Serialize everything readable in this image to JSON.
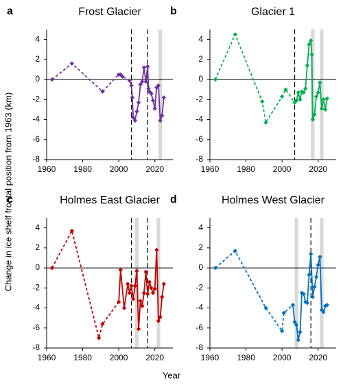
{
  "xlabel": "Year",
  "ylabel": "Change in ice shelf frontal position from 1963 (km)",
  "chart_data": [
    {
      "type": "line",
      "panel": "a",
      "title": "Frost Glacier",
      "color": "#7030a0",
      "solid_from": 2006,
      "xlim": [
        1960,
        2030
      ],
      "xticks": [
        1960,
        1980,
        2000,
        2020
      ],
      "ylim": [
        -8,
        5
      ],
      "yticks": [
        -8,
        -6,
        -4,
        -2,
        0,
        2,
        4
      ],
      "vlines": [
        2007,
        2016
      ],
      "bands": [
        [
          2022,
          2024
        ]
      ],
      "x": [
        1963,
        1974,
        1991,
        2000,
        2001,
        2002,
        2006,
        2007,
        2007.5,
        2008,
        2009,
        2010,
        2011,
        2012,
        2013,
        2014,
        2015,
        2016,
        2016.5,
        2017,
        2018,
        2019,
        2020,
        2021,
        2022,
        2023,
        2024,
        2025
      ],
      "values": [
        0,
        1.6,
        -1.2,
        0.5,
        0.5,
        0.3,
        -0.1,
        -0.6,
        -1.8,
        -3.8,
        -4.1,
        -3.2,
        -2.3,
        -0.5,
        -0.2,
        1.2,
        -0.2,
        1.3,
        -0.9,
        -1.2,
        -1.4,
        -2.1,
        -2.9,
        -0.8,
        -0.6,
        -4.1,
        -3.6,
        -1.8
      ]
    },
    {
      "type": "line",
      "panel": "b",
      "title": "Glacier 1",
      "color": "#00b050",
      "solid_from": 2007,
      "xlim": [
        1960,
        2030
      ],
      "xticks": [
        1960,
        1980,
        2000,
        2020
      ],
      "ylim": [
        -8,
        5
      ],
      "yticks": [
        -8,
        -6,
        -4,
        -2,
        0,
        2,
        4
      ],
      "vlines": [
        2007
      ],
      "bands": [
        [
          2016,
          2018
        ],
        [
          2021,
          2023
        ]
      ],
      "x": [
        1963,
        1974,
        1989,
        1991,
        2000,
        2002,
        2007,
        2008,
        2009,
        2010,
        2011,
        2012,
        2013,
        2014,
        2015,
        2016,
        2016.5,
        2017,
        2018,
        2019,
        2020,
        2021,
        2022,
        2023,
        2024,
        2025
      ],
      "values": [
        0,
        4.5,
        -2.2,
        -4.3,
        -1.7,
        -1,
        -2.3,
        -2.1,
        -1.3,
        -2,
        -1.2,
        -1.3,
        -0.9,
        1.4,
        3.5,
        3.9,
        2.5,
        -4,
        -3.5,
        -1.7,
        -1.3,
        -0.3,
        -2.9,
        -2,
        -3,
        -1.9
      ]
    },
    {
      "type": "line",
      "panel": "c",
      "title": "Holmes East Glacier",
      "color": "#c00000",
      "solid_from": 2000,
      "xlim": [
        1960,
        2030
      ],
      "xticks": [
        1960,
        1980,
        2000,
        2020
      ],
      "ylim": [
        -8,
        5
      ],
      "yticks": [
        -8,
        -6,
        -4,
        -2,
        0,
        2,
        4
      ],
      "vlines": [
        2007,
        2016
      ],
      "bands": [
        [
          2009,
          2011
        ],
        [
          2021,
          2023
        ]
      ],
      "x": [
        1963,
        1974,
        1989,
        1991,
        2000,
        2001,
        2003,
        2005,
        2006,
        2007,
        2008,
        2009,
        2010,
        2011,
        2012,
        2013,
        2014,
        2015,
        2016,
        2017,
        2018,
        2019,
        2020,
        2021,
        2022,
        2023,
        2024,
        2025
      ],
      "values": [
        0,
        3.7,
        -7,
        -5.6,
        -3.4,
        -0.2,
        -4,
        -1.6,
        -2.5,
        -1.8,
        -3.1,
        -1.8,
        -0.3,
        -6.1,
        -3.3,
        -3.8,
        -2.5,
        -0.4,
        -2.6,
        -1.4,
        -2,
        -2.5,
        -2.1,
        1.8,
        -5.3,
        -4.9,
        -2.9,
        -1.6
      ]
    },
    {
      "type": "line",
      "panel": "d",
      "title": "Holmes West Glacier",
      "color": "#0070c0",
      "solid_from": 2006,
      "xlim": [
        1960,
        2030
      ],
      "xticks": [
        1960,
        1980,
        2000,
        2020
      ],
      "ylim": [
        -8,
        5
      ],
      "yticks": [
        -8,
        -6,
        -4,
        -2,
        0,
        2,
        4
      ],
      "vlines": [
        2016
      ],
      "bands": [
        [
          2007,
          2009
        ],
        [
          2021,
          2023
        ]
      ],
      "x": [
        1963,
        1974,
        1991,
        2000,
        2001,
        2006,
        2007,
        2008,
        2009,
        2010,
        2011,
        2012,
        2013,
        2014,
        2015,
        2016,
        2017,
        2018,
        2019,
        2020,
        2021,
        2022,
        2023,
        2024,
        2025
      ],
      "values": [
        0,
        1.7,
        -4,
        -6.3,
        -4.5,
        -3.7,
        -5.4,
        -5.7,
        -7.2,
        -6.4,
        -2.5,
        -2.6,
        -3.4,
        -3.5,
        -0.7,
        1.4,
        -2.9,
        -1.9,
        -0.9,
        0.3,
        1.1,
        -4.2,
        -4.4,
        -3.8,
        -3.7
      ]
    }
  ]
}
